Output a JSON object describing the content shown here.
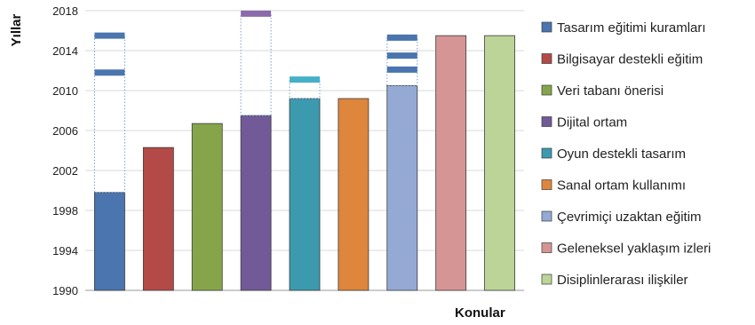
{
  "chart_data": {
    "type": "bar",
    "xlabel": "Konular",
    "ylabel": "Yıllar",
    "ylim": [
      1990,
      2018
    ],
    "yticks": [
      1990,
      1994,
      1998,
      2002,
      2006,
      2010,
      2014,
      2018
    ],
    "grid": true,
    "legend_position": "right",
    "series": [
      {
        "name": "Tasarım eğitimi kuramları",
        "value": 1999.8,
        "later": [
          2011.8,
          2015.5
        ],
        "color": "#4a75ae",
        "marker_color": "#4a75ae"
      },
      {
        "name": "Bilgisayar destekli eğitim",
        "value": 2004.3,
        "later": [],
        "color": "#b34a48",
        "marker_color": "#b34a48"
      },
      {
        "name": "Veri tabanı önerisi",
        "value": 2006.7,
        "later": [],
        "color": "#86a54a",
        "marker_color": "#86a54a"
      },
      {
        "name": "Dijital ortam",
        "value": 2007.5,
        "later": [
          2017.7
        ],
        "color": "#725a98",
        "marker_color": "#8a6aaa"
      },
      {
        "name": "Oyun destekli tasarım",
        "value": 2009.2,
        "later": [
          2011.1
        ],
        "color": "#3c9aae",
        "marker_color": "#46b0c8"
      },
      {
        "name": "Sanal ortam kullanımı",
        "value": 2009.2,
        "later": [],
        "color": "#dd863c",
        "marker_color": "#dd863c"
      },
      {
        "name": "Çevrimiçi uzaktan eğitim",
        "value": 2010.5,
        "later": [
          2012.1,
          2013.5,
          2015.3
        ],
        "color": "#94aad4",
        "marker_color": "#4a75ae"
      },
      {
        "name": "Geleneksel yaklaşım izleri",
        "value": 2015.5,
        "later": [],
        "color": "#d59594",
        "marker_color": "#d59594"
      },
      {
        "name": "Disiplinlerarası ilişkiler",
        "value": 2015.5,
        "later": [],
        "color": "#bcd498",
        "marker_color": "#bcd498"
      }
    ]
  }
}
